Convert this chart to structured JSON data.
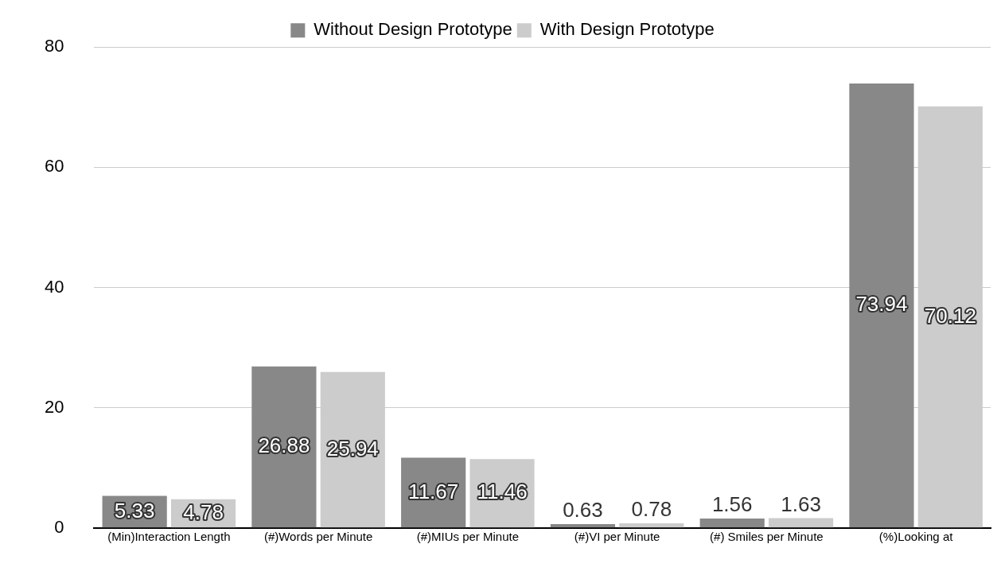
{
  "chart_data": {
    "type": "bar",
    "categories": [
      "(Min)Interaction Length",
      "(#)Words per Minute",
      "(#)MIUs per Minute",
      "(#)VI per Minute",
      "(#) Smiles per Minute",
      "(%)Looking at"
    ],
    "series": [
      {
        "name": "Without Design Prototype",
        "color": "#888888",
        "values": [
          5.33,
          26.88,
          11.67,
          0.63,
          1.56,
          73.94
        ]
      },
      {
        "name": "With Design Prototype",
        "color": "#cccccc",
        "values": [
          4.78,
          25.94,
          11.46,
          0.78,
          1.63,
          70.12
        ]
      }
    ],
    "ylim": [
      0,
      80
    ],
    "yticks": [
      0,
      20,
      40,
      60,
      80
    ],
    "grid": "y",
    "legend": "top",
    "data_labels": true
  }
}
